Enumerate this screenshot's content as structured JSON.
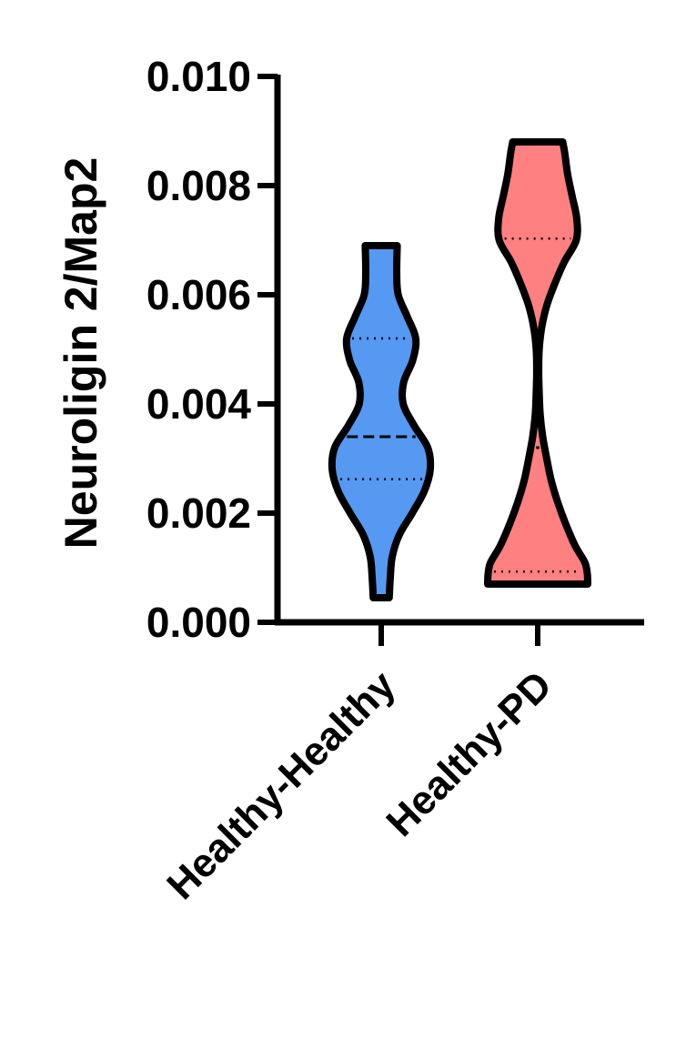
{
  "chart_data": {
    "type": "violin",
    "title": "",
    "xlabel": "",
    "ylabel": "Neuroligin 2/Map2",
    "ylim": [
      0,
      0.01
    ],
    "yticks": [
      "0.000",
      "0.002",
      "0.004",
      "0.006",
      "0.008",
      "0.010"
    ],
    "categories": [
      "Healthy-Healthy",
      "Healthy-PD"
    ],
    "series": [
      {
        "category": "Healthy-Healthy",
        "color": "#5599f2",
        "min": 0.00045,
        "max": 0.0069,
        "q1": 0.00262,
        "median": 0.0034,
        "q3": 0.0052,
        "density_y": [
          0.00045,
          0.0008,
          0.0012,
          0.0016,
          0.002,
          0.0024,
          0.0028,
          0.0032,
          0.0036,
          0.004,
          0.0044,
          0.0048,
          0.0052,
          0.0056,
          0.006,
          0.0064,
          0.0069
        ],
        "density_w": [
          0.16,
          0.18,
          0.22,
          0.36,
          0.62,
          0.86,
          0.98,
          0.93,
          0.66,
          0.44,
          0.45,
          0.63,
          0.69,
          0.52,
          0.34,
          0.31,
          0.32
        ]
      },
      {
        "category": "Healthy-PD",
        "color": "#ff8080",
        "min": 0.0007,
        "max": 0.0088,
        "q1": 0.00093,
        "median": 0.0032,
        "q3": 0.00703,
        "density_y": [
          0.0007,
          0.0009,
          0.0011,
          0.0014,
          0.0018,
          0.0022,
          0.0026,
          0.003,
          0.0034,
          0.0038,
          0.0042,
          0.0046,
          0.005,
          0.0054,
          0.0058,
          0.0062,
          0.0066,
          0.007,
          0.0074,
          0.0078,
          0.0082,
          0.0086,
          0.0088
        ],
        "density_w": [
          1.0,
          0.99,
          0.94,
          0.75,
          0.56,
          0.4,
          0.27,
          0.18,
          0.1,
          0.05,
          0.03,
          0.02,
          0.03,
          0.08,
          0.18,
          0.34,
          0.53,
          0.77,
          0.78,
          0.69,
          0.6,
          0.54,
          0.5
        ]
      }
    ]
  }
}
